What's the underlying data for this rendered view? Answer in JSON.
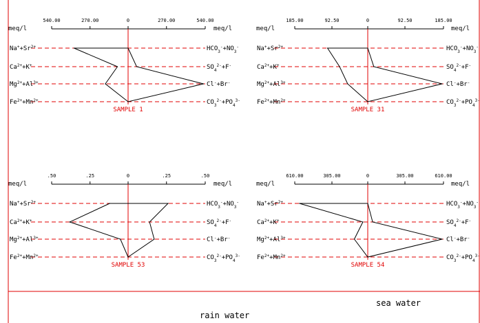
{
  "colors": {
    "sample_red": "#e00000",
    "ink": "#000000",
    "frame_red": "#e00000"
  },
  "axis_unit": "meq/l",
  "left_labels": [
    "Na++Sr2+",
    "Ca2++K+",
    "Mg2++Al3+",
    "Fe2++Mn2+"
  ],
  "right_labels": [
    "HCO3-+NO3-",
    "SO42-+F-",
    "Cl-+Br-",
    "CO32-+PO43-"
  ],
  "chart_data": [
    {
      "type": "stiff",
      "title": "SAMPLE   1",
      "scale_max": 540,
      "tick_labels": [
        "540.00",
        "270.00",
        "0",
        "270.00",
        "540.00"
      ],
      "cations": [
        380,
        75,
        160,
        0
      ],
      "anions": [
        0,
        60,
        530,
        0
      ]
    },
    {
      "type": "stiff",
      "title": "SAMPLE   31",
      "scale_max": 185,
      "tick_labels": [
        "185.00",
        "92.50",
        "0",
        "92.50",
        "185.00"
      ],
      "cations": [
        100,
        70,
        50,
        0
      ],
      "anions": [
        0,
        15,
        185,
        0
      ]
    },
    {
      "type": "stiff",
      "title": "SAMPLE   53",
      "scale_max": 0.5,
      "tick_labels": [
        ".50",
        ".25",
        "0",
        ".25",
        ".50"
      ],
      "cations": [
        0.12,
        0.38,
        0.05,
        0
      ],
      "anions": [
        0.26,
        0.14,
        0.17,
        0
      ]
    },
    {
      "type": "stiff",
      "title": "SAMPLE   54",
      "scale_max": 610,
      "tick_labels": [
        "610.00",
        "305.00",
        "0",
        "305.00",
        "610.00"
      ],
      "cations": [
        560,
        40,
        110,
        0
      ],
      "anions": [
        0,
        40,
        610,
        0
      ]
    }
  ],
  "footer": {
    "sea_water": "sea water",
    "rain_water": "rain water"
  }
}
